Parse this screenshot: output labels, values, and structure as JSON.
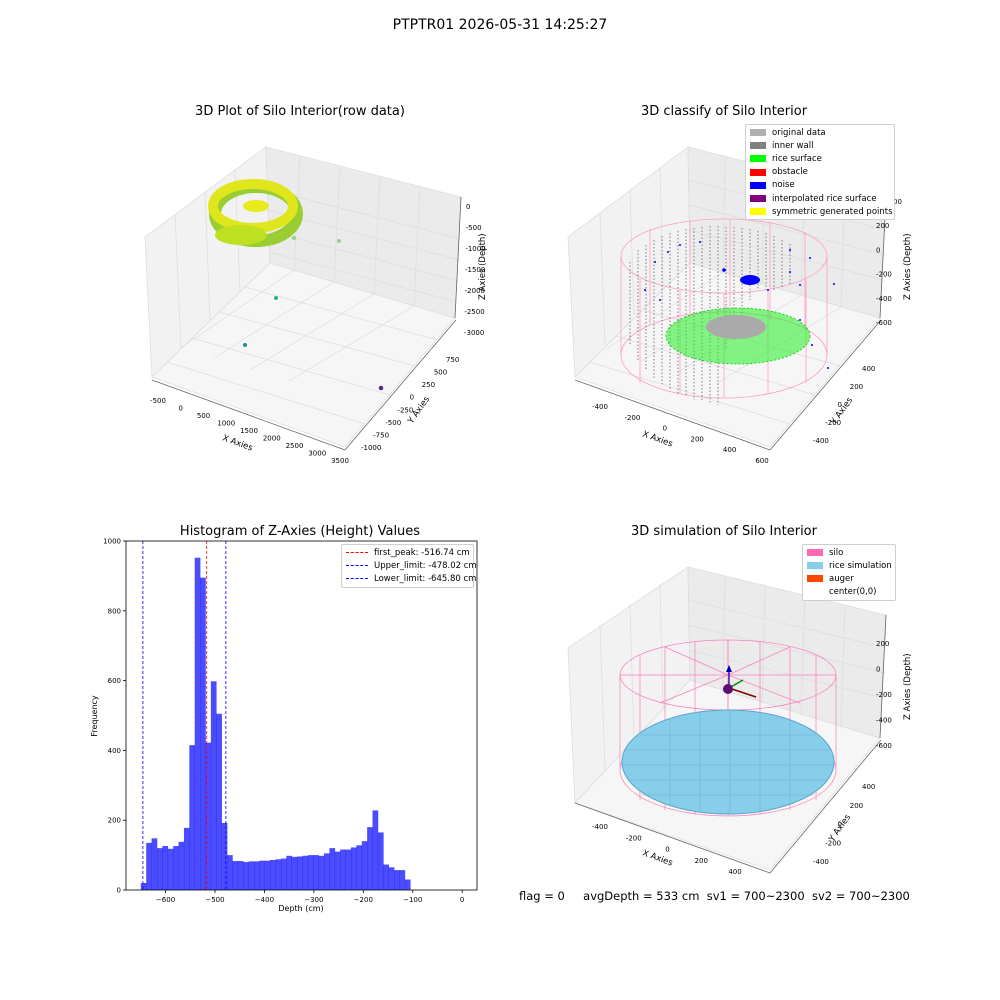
{
  "suptitle": "PTPTR01 2026-05-31 14:25:27",
  "panels": {
    "raw": {
      "title": "3D Plot of Silo Interior(row data)",
      "xlabel": "X Axies",
      "ylabel": "Y Axies",
      "zlabel": "Z Axies (Depth)",
      "xticks": [
        "-500",
        "0",
        "500",
        "1000",
        "1500",
        "2000",
        "2500",
        "3000",
        "3500"
      ],
      "yticks": [
        "750",
        "500",
        "250",
        "0",
        "-250",
        "-500",
        "-750",
        "-1000"
      ],
      "zticks": [
        "0",
        "-500",
        "-1000",
        "-1500",
        "-2000",
        "-2500",
        "-3000"
      ]
    },
    "classify": {
      "title": "3D classify of Silo Interior",
      "xlabel": "X Axies",
      "ylabel": "Y Axies",
      "zlabel": "Z Axies (Depth)",
      "xticks": [
        "-400",
        "-200",
        "0",
        "200",
        "400",
        "600"
      ],
      "yticks": [
        "400",
        "200",
        "0",
        "-200",
        "-400"
      ],
      "zticks": [
        "200",
        "0",
        "-200",
        "-400",
        "-600"
      ],
      "zticks_partial": "00",
      "legend": [
        {
          "label": "original data",
          "color": "#b0b0b0"
        },
        {
          "label": "inner wall",
          "color": "#808080"
        },
        {
          "label": "rice surface",
          "color": "#00ff00"
        },
        {
          "label": "obstacle",
          "color": "#ff0000"
        },
        {
          "label": "noise",
          "color": "#0000ff"
        },
        {
          "label": "interpolated rice surface",
          "color": "#800080"
        },
        {
          "label": "symmetric generated points",
          "color": "#ffff00"
        }
      ]
    },
    "histogram": {
      "title": "Histogram of Z-Axies (Height) Values",
      "xlabel": "Depth (cm)",
      "ylabel": "Frequency",
      "legend": [
        {
          "label": "first_peak: -516.74 cm",
          "color": "#ff0000"
        },
        {
          "label": "Upper_limit: -478.02 cm",
          "color": "#0000ff"
        },
        {
          "label": "Lower_limit: -645.80 cm",
          "color": "#0000ff"
        }
      ]
    },
    "simulation": {
      "title": "3D simulation of Silo Interior",
      "xlabel": "X Axies",
      "ylabel": "Y Axies",
      "zlabel": "Z Axies (Depth)",
      "xticks": [
        "-400",
        "-200",
        "0",
        "200",
        "400"
      ],
      "yticks": [
        "400",
        "200",
        "0",
        "-200",
        "-400"
      ],
      "zticks": [
        "200",
        "0",
        "-200",
        "-400",
        "-600"
      ],
      "legend": [
        {
          "label": "silo",
          "color": "#ff69b4"
        },
        {
          "label": "rice simulation",
          "color": "#87ceeb"
        },
        {
          "label": "auger",
          "color": "#ff4500"
        },
        {
          "label": "center(0,0)",
          "color": "#ffffff"
        }
      ]
    }
  },
  "footer": {
    "flag": "flag = 0",
    "avg": "avgDepth = 533 cm",
    "sv1": "sv1 = 700~2300",
    "sv2": "sv2 = 700~2300"
  },
  "chart_data": [
    {
      "type": "bar",
      "title": "Histogram of Z-Axies (Height) Values",
      "xlabel": "Depth (cm)",
      "ylabel": "Frequency",
      "xlim": [
        -680,
        30
      ],
      "ylim": [
        0,
        1000
      ],
      "xticks": [
        -600,
        -500,
        -400,
        -300,
        -200,
        -100,
        0
      ],
      "yticks": [
        0,
        200,
        400,
        600,
        800,
        1000
      ],
      "bin_width": 10.9,
      "bin_start": -650,
      "color": "#0000ff",
      "values": [
        20,
        135,
        148,
        120,
        126,
        118,
        126,
        138,
        178,
        415,
        952,
        895,
        422,
        598,
        505,
        192,
        100,
        83,
        83,
        80,
        82,
        82,
        84,
        84,
        86,
        88,
        90,
        98,
        95,
        96,
        98,
        100,
        100,
        98,
        105,
        120,
        110,
        116,
        116,
        122,
        128,
        140,
        180,
        228,
        165,
        73,
        65,
        57,
        57,
        30
      ],
      "vlines": [
        {
          "label": "first_peak: -516.74 cm",
          "x": -516.74,
          "color": "#ff0000"
        },
        {
          "label": "Upper_limit: -478.02 cm",
          "x": -478.02,
          "color": "#0000ff"
        },
        {
          "label": "Lower_limit: -645.80 cm",
          "x": -645.8,
          "color": "#0000ff"
        }
      ],
      "legend_position": "top-right"
    }
  ]
}
